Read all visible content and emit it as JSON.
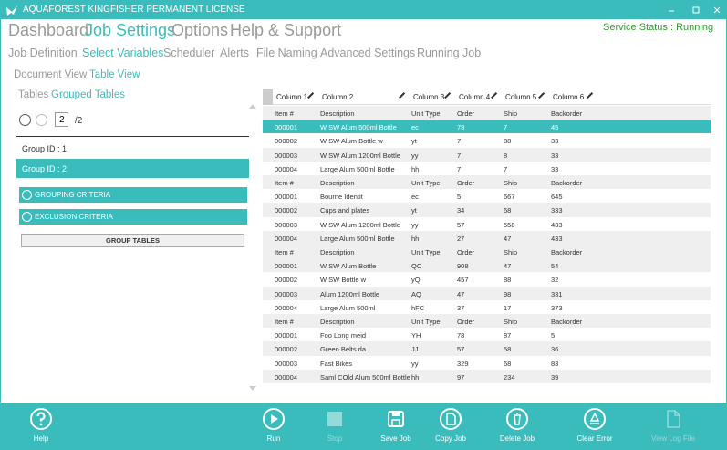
{
  "title_bar": {
    "title": "AQUAFOREST KINGFISHER PERMANENT LICENSE"
  },
  "status": "Service Status : Running",
  "menu": [
    {
      "label": "Dashboard",
      "active": false
    },
    {
      "label": "Job Settings",
      "active": true
    },
    {
      "label": "Options",
      "active": false
    },
    {
      "label": "Help & Support",
      "active": false
    }
  ],
  "subtabs": [
    {
      "label": "Job Definition",
      "active": false
    },
    {
      "label": "Select Variables",
      "active": true
    },
    {
      "label": "Scheduler",
      "active": false
    },
    {
      "label": "Alerts",
      "active": false
    },
    {
      "label": "File Naming",
      "active": false
    },
    {
      "label": "Advanced Settings",
      "active": false
    },
    {
      "label": "Running Job",
      "active": false
    }
  ],
  "views": [
    {
      "label": "Document View",
      "active": false
    },
    {
      "label": "Table View",
      "active": true
    }
  ],
  "left_panel": {
    "tabs": [
      {
        "label": "Tables",
        "active": false
      },
      {
        "label": "Grouped Tables",
        "active": true
      }
    ],
    "pager": {
      "current": "2",
      "total": "/2"
    },
    "groups": [
      {
        "label": "Group ID : 1",
        "selected": false
      },
      {
        "label": "Group ID : 2",
        "selected": true
      }
    ],
    "sections": [
      "GROUPING CRITERIA",
      "EXCLUSION CRITERIA"
    ],
    "button": "GROUP TABLES"
  },
  "table": {
    "columns": [
      "Column 1",
      "Column 2",
      "Column 3",
      "Column 4",
      "Column 5",
      "Column 6"
    ],
    "selected_row": 1,
    "rows": [
      [
        "Item #",
        "Description",
        "Unit Type",
        "Order",
        "Ship",
        "Backorder"
      ],
      [
        "000001",
        "W SW Alum 500ml Bottle",
        "ec",
        "78",
        "7",
        "45"
      ],
      [
        "000002",
        "W SW Alum Bottle w",
        "yt",
        "7",
        "88",
        "33"
      ],
      [
        "000003",
        "W SW Alum 1200ml Bottle",
        "yy",
        "7",
        "8",
        "33"
      ],
      [
        "000004",
        "Large Alum 500ml Bottle",
        "hh",
        "7",
        "7",
        "33"
      ],
      [
        "Item #",
        "Description",
        "Unit Type",
        "Order",
        "Ship",
        "Backorder"
      ],
      [
        "000001",
        "Bourne Identit",
        "ec",
        "5",
        "667",
        "645"
      ],
      [
        "000002",
        "Cups and plates",
        "yt",
        "34",
        "68",
        "333"
      ],
      [
        "000003",
        "W SW Alum 1200ml Bottle",
        "yy",
        "57",
        "558",
        "433"
      ],
      [
        "000004",
        "Large Alum 500ml Bottle",
        "hh",
        "27",
        "47",
        "433"
      ],
      [
        "Item #",
        "Description",
        "Unit Type",
        "Order",
        "Ship",
        "Backorder"
      ],
      [
        "000001",
        "W SW Alum Bottle",
        "QC",
        "908",
        "47",
        "54"
      ],
      [
        "000002",
        "W SW Bottle w",
        "yQ",
        "457",
        "88",
        "32"
      ],
      [
        "000003",
        "Alum 1200ml Bottle",
        "AQ",
        "47",
        "98",
        "331"
      ],
      [
        "000004",
        "Large Alum 500ml",
        "hFC",
        "37",
        "17",
        "373"
      ],
      [
        "Item #",
        "Description",
        "Unit Type",
        "Order",
        "Ship",
        "Backorder"
      ],
      [
        "000001",
        "Foo Long meid",
        "YH",
        "78",
        "87",
        "5"
      ],
      [
        "000002",
        "Green Belts da",
        "JJ",
        "57",
        "58",
        "36"
      ],
      [
        "000003",
        "Fast Bikes",
        "yy",
        "329",
        "68",
        "83"
      ],
      [
        "000004",
        "Saml COld Alum 500ml Bottle",
        "hh",
        "97",
        "234",
        "39"
      ]
    ]
  },
  "toolbar": [
    {
      "label": "Help",
      "enabled": true
    },
    {
      "label": "Run",
      "enabled": true
    },
    {
      "label": "Stop",
      "enabled": false
    },
    {
      "label": "Save Job",
      "enabled": true
    },
    {
      "label": "Copy Job",
      "enabled": true
    },
    {
      "label": "Delete Job",
      "enabled": true
    },
    {
      "label": "Clear Error",
      "enabled": true
    },
    {
      "label": "View Log File",
      "enabled": false
    }
  ]
}
